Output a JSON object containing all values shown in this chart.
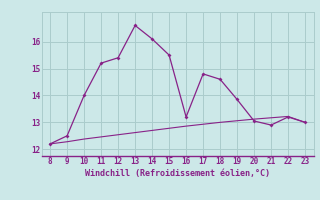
{
  "x": [
    8,
    9,
    10,
    11,
    12,
    13,
    14,
    15,
    16,
    17,
    18,
    19,
    20,
    21,
    22,
    23
  ],
  "y_main": [
    12.2,
    12.5,
    14.0,
    15.2,
    15.4,
    16.6,
    16.1,
    15.5,
    13.2,
    14.8,
    14.6,
    13.85,
    13.05,
    12.9,
    13.2,
    13.0
  ],
  "y_lower": [
    12.2,
    12.28,
    12.38,
    12.46,
    12.54,
    12.62,
    12.7,
    12.78,
    12.86,
    12.93,
    13.0,
    13.06,
    13.12,
    13.17,
    13.22,
    13.0
  ],
  "line_color": "#882288",
  "bg_color": "#cce8e8",
  "grid_color": "#aacccc",
  "xlabel": "Windchill (Refroidissement éolien,°C)",
  "xlabel_color": "#882288",
  "xlim": [
    7.5,
    23.5
  ],
  "ylim": [
    11.75,
    17.1
  ],
  "xticks": [
    8,
    9,
    10,
    11,
    12,
    13,
    14,
    15,
    16,
    17,
    18,
    19,
    20,
    21,
    22,
    23
  ],
  "yticks": [
    12,
    13,
    14,
    15,
    16
  ],
  "marker": "D"
}
